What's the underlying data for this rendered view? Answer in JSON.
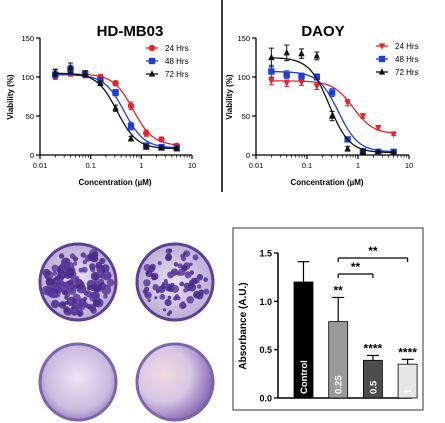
{
  "chart_data": [
    {
      "type": "scatter",
      "title": "HD-MB03",
      "xlabel": "Concentration (µM)",
      "ylabel": "Viability (%)",
      "xscale": "log",
      "xlim": [
        0.01,
        10
      ],
      "ylim": [
        0,
        150
      ],
      "x_ticks": [
        "0.01",
        "0.1",
        "1",
        "10"
      ],
      "y_ticks": [
        "0",
        "50",
        "100",
        "150"
      ],
      "legend_placement": "top-right",
      "series": [
        {
          "name": "24 Hrs",
          "color": "#e8232a",
          "marker": "circle",
          "x": [
            0.02,
            0.04,
            0.078,
            0.156,
            0.31,
            0.625,
            1.25,
            2.5,
            5
          ],
          "y": [
            104,
            105,
            103,
            100,
            92,
            63,
            28,
            20,
            12
          ],
          "err": [
            6,
            4,
            4,
            3,
            3,
            5,
            4,
            3,
            2
          ]
        },
        {
          "name": "48 Hrs",
          "color": "#1f3fd6",
          "marker": "square",
          "x": [
            0.02,
            0.04,
            0.078,
            0.156,
            0.31,
            0.625,
            1.25,
            2.5,
            5
          ],
          "y": [
            103,
            110,
            104,
            96,
            80,
            37,
            12,
            10,
            9
          ],
          "err": [
            6,
            5,
            4,
            3,
            4,
            5,
            3,
            2,
            2
          ]
        },
        {
          "name": "72 Hrs",
          "color": "#111111",
          "marker": "triangle",
          "x": [
            0.02,
            0.04,
            0.078,
            0.156,
            0.31,
            0.625,
            1.25,
            2.5,
            5
          ],
          "y": [
            105,
            112,
            104,
            92,
            60,
            21,
            10,
            9,
            8
          ],
          "err": [
            5,
            6,
            4,
            3,
            4,
            3,
            2,
            2,
            2
          ]
        }
      ]
    },
    {
      "type": "scatter",
      "title": "DAOY",
      "xlabel": "Concentration (µM)",
      "ylabel": "Viability (%)",
      "xscale": "log",
      "xlim": [
        0.01,
        10
      ],
      "ylim": [
        0,
        150
      ],
      "x_ticks": [
        "0.01",
        "0.1",
        "1",
        "10"
      ],
      "y_ticks": [
        "0",
        "50",
        "100",
        "150"
      ],
      "legend_placement": "top-right",
      "series": [
        {
          "name": "24 Hrs",
          "color": "#e8232a",
          "marker": "triangle-down",
          "x": [
            0.02,
            0.04,
            0.078,
            0.156,
            0.31,
            0.625,
            1.25,
            2.5,
            5
          ],
          "y": [
            95,
            92,
            93,
            88,
            80,
            67,
            50,
            35,
            27
          ],
          "err": [
            5,
            4,
            4,
            4,
            3,
            4,
            3,
            3,
            2
          ]
        },
        {
          "name": "48 Hrs",
          "color": "#1f3fd6",
          "marker": "square",
          "x": [
            0.02,
            0.04,
            0.078,
            0.156,
            0.31,
            0.625,
            1.25,
            2.5,
            5
          ],
          "y": [
            107,
            103,
            101,
            100,
            80,
            20,
            5,
            4,
            4
          ],
          "err": [
            8,
            5,
            4,
            4,
            5,
            3,
            2,
            1,
            1
          ]
        },
        {
          "name": "72 Hrs",
          "color": "#111111",
          "marker": "triangle",
          "x": [
            0.02,
            0.04,
            0.078,
            0.156,
            0.31,
            0.625,
            1.25,
            2.5,
            5
          ],
          "y": [
            125,
            131,
            130,
            127,
            50,
            8,
            4,
            4,
            3
          ],
          "err": [
            12,
            10,
            6,
            5,
            6,
            3,
            2,
            1,
            1
          ]
        }
      ]
    },
    {
      "type": "bar",
      "xlabel": "",
      "ylabel": "Absorbance (A.U.)",
      "ylim": [
        0,
        1.5
      ],
      "y_ticks": [
        "0.0",
        "0.5",
        "1.0",
        "1.5"
      ],
      "categories": [
        "Control",
        "0.25",
        "0.5",
        "1"
      ],
      "values": [
        1.2,
        0.79,
        0.39,
        0.35
      ],
      "err": [
        0.21,
        0.25,
        0.05,
        0.05
      ],
      "bar_colors": [
        "#000000",
        "#9a9a9a",
        "#4d4d4d",
        "#e6e6e6"
      ],
      "label_colors": [
        "#ffffff",
        "#ffffff",
        "#ffffff",
        "#ffffff"
      ],
      "significance": [
        "",
        "**",
        "****",
        "****"
      ],
      "brackets": [
        {
          "from": "0.25",
          "to": "0.5",
          "label": "**"
        },
        {
          "from": "0.25",
          "to": "1",
          "label": "**"
        }
      ]
    }
  ],
  "images": {
    "colonies": [
      {
        "name": "colony-plate-1",
        "tint": "#6a44a8",
        "density": "heavy"
      },
      {
        "name": "colony-plate-2",
        "tint": "#6a44a8",
        "density": "medium"
      },
      {
        "name": "colony-plate-3",
        "tint": "#c7b6dd",
        "density": "none"
      },
      {
        "name": "colony-plate-4",
        "tint": "#c7b6dd",
        "density": "none"
      }
    ]
  }
}
